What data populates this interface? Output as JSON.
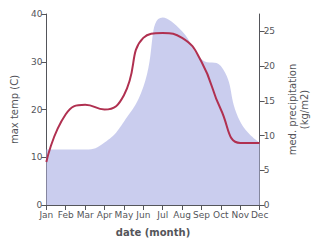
{
  "chart_data": {
    "type": "line",
    "xlabel": "date (month)",
    "ylabel": "max temp (C)",
    "y2label": "med. precipitation\n(kg/m2)",
    "categories": [
      "Jan",
      "Feb",
      "Mar",
      "Apr",
      "May",
      "Jun",
      "Jul",
      "Aug",
      "Sep",
      "Oct",
      "Nov",
      "Dec"
    ],
    "series": [
      {
        "type": "area",
        "axis": "y2",
        "color": "#b8bce8",
        "values": [
          8,
          8,
          8,
          9,
          12,
          17,
          27,
          25,
          21,
          20,
          12,
          9
        ]
      },
      {
        "type": "line",
        "color": "#b03050",
        "values": [
          9,
          19,
          21,
          20,
          23,
          35,
          36,
          35,
          30,
          20,
          13,
          13
        ]
      }
    ],
    "ylim": [
      0,
      40
    ],
    "yticks": [
      0,
      10,
      20,
      30,
      40
    ],
    "y2lim": [
      0,
      27.5
    ],
    "y2ticks": [
      0,
      5,
      10,
      15,
      20,
      25
    ],
    "grid": false
  }
}
